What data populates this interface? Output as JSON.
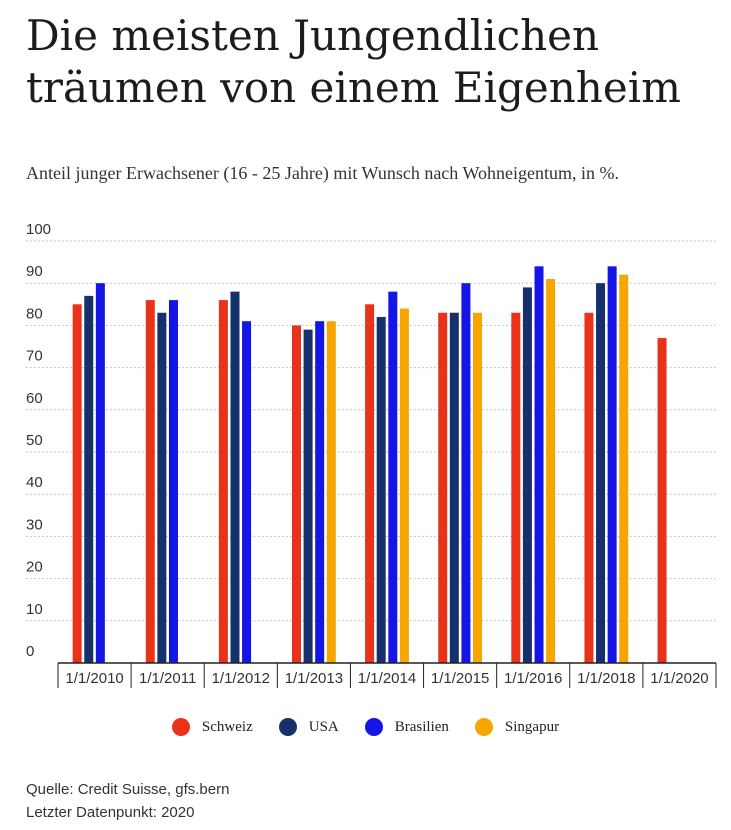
{
  "title": "Die meisten Jungendlichen träumen von einem Eigenheim",
  "subtitle": "Anteil junger Erwachsener (16 - 25 Jahre) mit Wunsch nach Wohneigentum, in %.",
  "source_line": "Quelle: Credit Suisse, gfs.bern",
  "last_datapoint_line": "Letzter Datenpunkt: 2020",
  "chart_data": {
    "type": "bar",
    "categories": [
      "1/1/2010",
      "1/1/2011",
      "1/1/2012",
      "1/1/2013",
      "1/1/2014",
      "1/1/2015",
      "1/1/2016",
      "1/1/2018",
      "1/1/2020"
    ],
    "y_ticks": [
      "0",
      "10",
      "20",
      "30",
      "40",
      "50",
      "60",
      "70",
      "80",
      "90",
      "100"
    ],
    "ylim": [
      0,
      100
    ],
    "grid": true,
    "legend_position": "bottom",
    "series": [
      {
        "name": "Schweiz",
        "color": "#e8321a",
        "values": [
          85,
          86,
          86,
          80,
          85,
          83,
          83,
          83,
          77
        ]
      },
      {
        "name": "USA",
        "color": "#16306b",
        "values": [
          87,
          83,
          88,
          79,
          82,
          83,
          89,
          90,
          null
        ]
      },
      {
        "name": "Brasilien",
        "color": "#1515e6",
        "values": [
          90,
          86,
          81,
          81,
          88,
          90,
          94,
          94,
          null
        ]
      },
      {
        "name": "Singapur",
        "color": "#f7a600",
        "values": [
          null,
          null,
          null,
          81,
          84,
          83,
          91,
          92,
          null
        ]
      }
    ]
  }
}
